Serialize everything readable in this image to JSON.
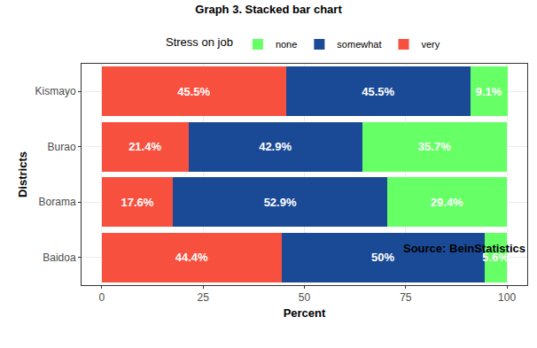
{
  "chart_data": {
    "type": "bar",
    "title": "Graph 3. Stacked bar chart",
    "x_label": "Percent",
    "y_label": "Districts",
    "legend_title": "Stress on job",
    "annotations": [
      "Source: BeinStatistics"
    ],
    "orientation": "horizontal",
    "stacked": true,
    "data_labels": true,
    "legend": "top",
    "grid": true,
    "categories": [
      "Baidoa",
      "Borama",
      "Burao",
      "Kismayo"
    ],
    "xlim": [
      -5,
      105
    ],
    "xticks": [
      0,
      25,
      50,
      75,
      100
    ],
    "series": [
      {
        "name": "very",
        "color": "#f8503e",
        "values": [
          44.4,
          17.6,
          21.4,
          45.5
        ],
        "value_labels": [
          "44.4%",
          "17.6%",
          "21.4%",
          "45.5%"
        ]
      },
      {
        "name": "somewhat",
        "color": "#1a4a96",
        "values": [
          50,
          52.9,
          42.9,
          45.5
        ],
        "value_labels": [
          "50%",
          "52.9%",
          "42.9%",
          "45.5%"
        ]
      },
      {
        "name": "none",
        "color": "#66ff66",
        "values": [
          5.6,
          29.4,
          35.7,
          9.1
        ],
        "value_labels": [
          "5.6%",
          "29.4%",
          "35.7%",
          "9.1%"
        ]
      }
    ]
  }
}
